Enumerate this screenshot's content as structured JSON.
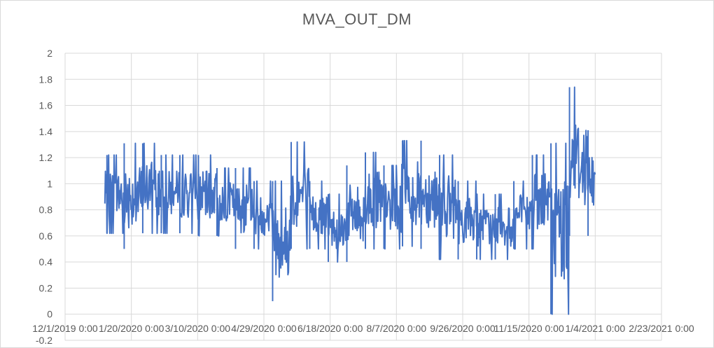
{
  "chart_data": {
    "type": "line",
    "title": "MVA_OUT_DM",
    "xlabel": "",
    "ylabel": "",
    "series_color": "#4472C4",
    "ylim": [
      -0.2,
      2
    ],
    "yticks": [
      "2",
      "1.8",
      "1.6",
      "1.4",
      "1.2",
      "1",
      "0.8",
      "0.6",
      "0.4",
      "0.2",
      "0",
      "-0.2"
    ],
    "xlim": [
      "2019-12-01",
      "2021-02-23"
    ],
    "xticks": [
      "12/1/2019 0:00",
      "1/20/2020 0:00",
      "3/10/2020 0:00",
      "4/29/2020 0:00",
      "6/18/2020 0:00",
      "8/7/2020 0:00",
      "9/26/2020 0:00",
      "11/15/2020 0:00",
      "1/4/2021 0:00",
      "2/23/2021 0:00"
    ],
    "grid": true,
    "legend": "none",
    "series": [
      {
        "x": [
          "2019-12-31",
          "2020-01-13",
          "2020-01-27",
          "2020-02-10",
          "2020-02-24",
          "2020-03-09",
          "2020-03-23",
          "2020-04-06",
          "2020-04-20",
          "2020-05-04",
          "2020-05-18",
          "2020-06-01",
          "2020-06-15",
          "2020-06-29",
          "2020-07-13",
          "2020-07-27",
          "2020-08-10",
          "2020-08-24",
          "2020-09-07",
          "2020-09-21",
          "2020-10-05",
          "2020-10-19",
          "2020-11-02",
          "2020-11-16",
          "2020-11-30",
          "2020-12-14",
          "2020-12-28"
        ],
        "high": [
          1.22,
          1.31,
          1.31,
          1.22,
          1.22,
          1.22,
          1.12,
          1.12,
          1.02,
          1.02,
          1.32,
          1.02,
          0.92,
          1.14,
          1.24,
          1.14,
          1.33,
          1.33,
          1.22,
          1.02,
          0.92,
          0.92,
          1.02,
          1.22,
          1.31,
          1.74,
          1.41
        ],
        "low": [
          0.62,
          0.5,
          0.62,
          0.62,
          0.62,
          0.6,
          0.6,
          0.5,
          0.5,
          0.1,
          0.5,
          0.5,
          0.4,
          0.4,
          0.5,
          0.5,
          0.52,
          0.5,
          0.42,
          0.42,
          0.42,
          0.42,
          0.5,
          0.5,
          0.0,
          0.6,
          0.6
        ]
      }
    ]
  }
}
